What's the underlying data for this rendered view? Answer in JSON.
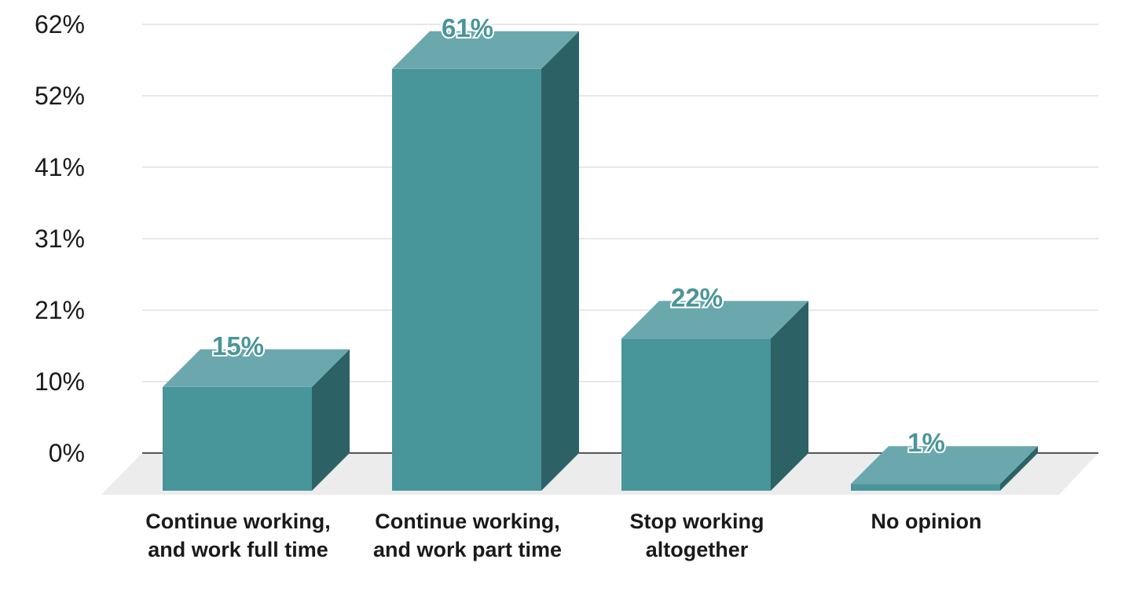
{
  "chart_data": {
    "type": "bar",
    "style": "3d-column",
    "categories": [
      [
        "Continue working,",
        "and work full time"
      ],
      [
        "Continue working,",
        "and work part time"
      ],
      [
        "Stop working",
        "altogether"
      ],
      [
        "No opinion"
      ]
    ],
    "values": [
      15,
      61,
      22,
      1
    ],
    "data_labels": [
      "15%",
      "61%",
      "22%",
      "1%"
    ],
    "yticks": [
      "0%",
      "10%",
      "21%",
      "31%",
      "41%",
      "52%",
      "62%"
    ],
    "ylim": [
      0,
      62
    ],
    "grid": true,
    "legend": "none",
    "colors": {
      "front": "#48959a",
      "top": "#6ba8ae",
      "side": "#2c6266",
      "floor": "#ececec",
      "grid": "#d0d0d0",
      "axis": "#222222",
      "label": "#4a9599"
    }
  }
}
